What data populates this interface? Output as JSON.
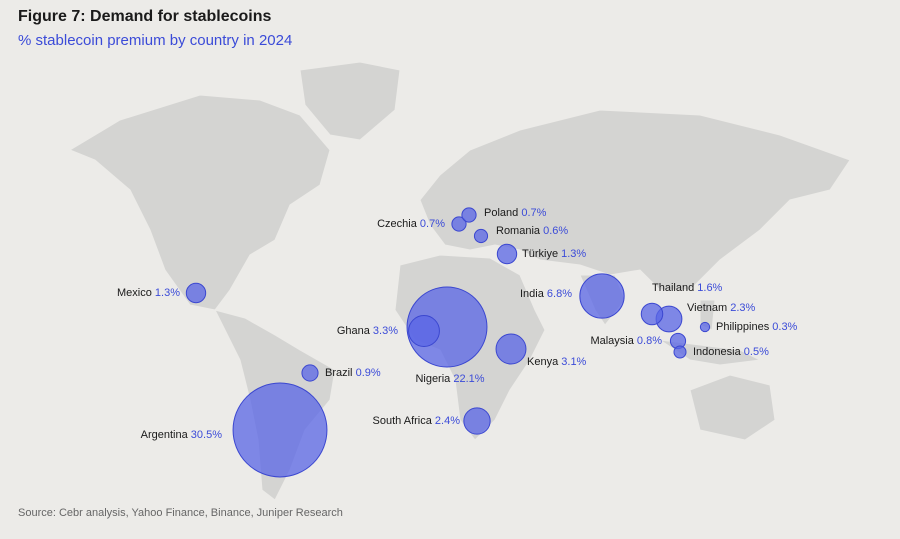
{
  "chart_data": {
    "type": "bubble-map",
    "title": "Figure 7: Demand for stablecoins",
    "subtitle": "% stablecoin premium by country in 2024",
    "source": "Source: Cebr analysis, Yahoo Finance, Binance, Juniper Research",
    "categories": [
      "Argentina",
      "Nigeria",
      "India",
      "Ghana",
      "Kenya",
      "South Africa",
      "Vietnam",
      "Thailand",
      "Mexico",
      "Türkiye",
      "Brazil",
      "Malaysia",
      "Czechia",
      "Poland",
      "Romania",
      "Indonesia",
      "Philippines"
    ],
    "values": [
      30.5,
      22.1,
      6.8,
      3.3,
      3.1,
      2.4,
      2.3,
      1.6,
      1.3,
      1.3,
      0.9,
      0.8,
      0.7,
      0.7,
      0.6,
      0.5,
      0.3
    ],
    "value_labels": [
      "30.5%",
      "22.1%",
      "6.8%",
      "3.3%",
      "3.1%",
      "2.4%",
      "2.3%",
      "1.6%",
      "1.3%",
      "1.3%",
      "0.9%",
      "0.8%",
      "0.7%",
      "0.7%",
      "0.6%",
      "0.5%",
      "0.3%"
    ],
    "color": "#5a66e6"
  }
}
